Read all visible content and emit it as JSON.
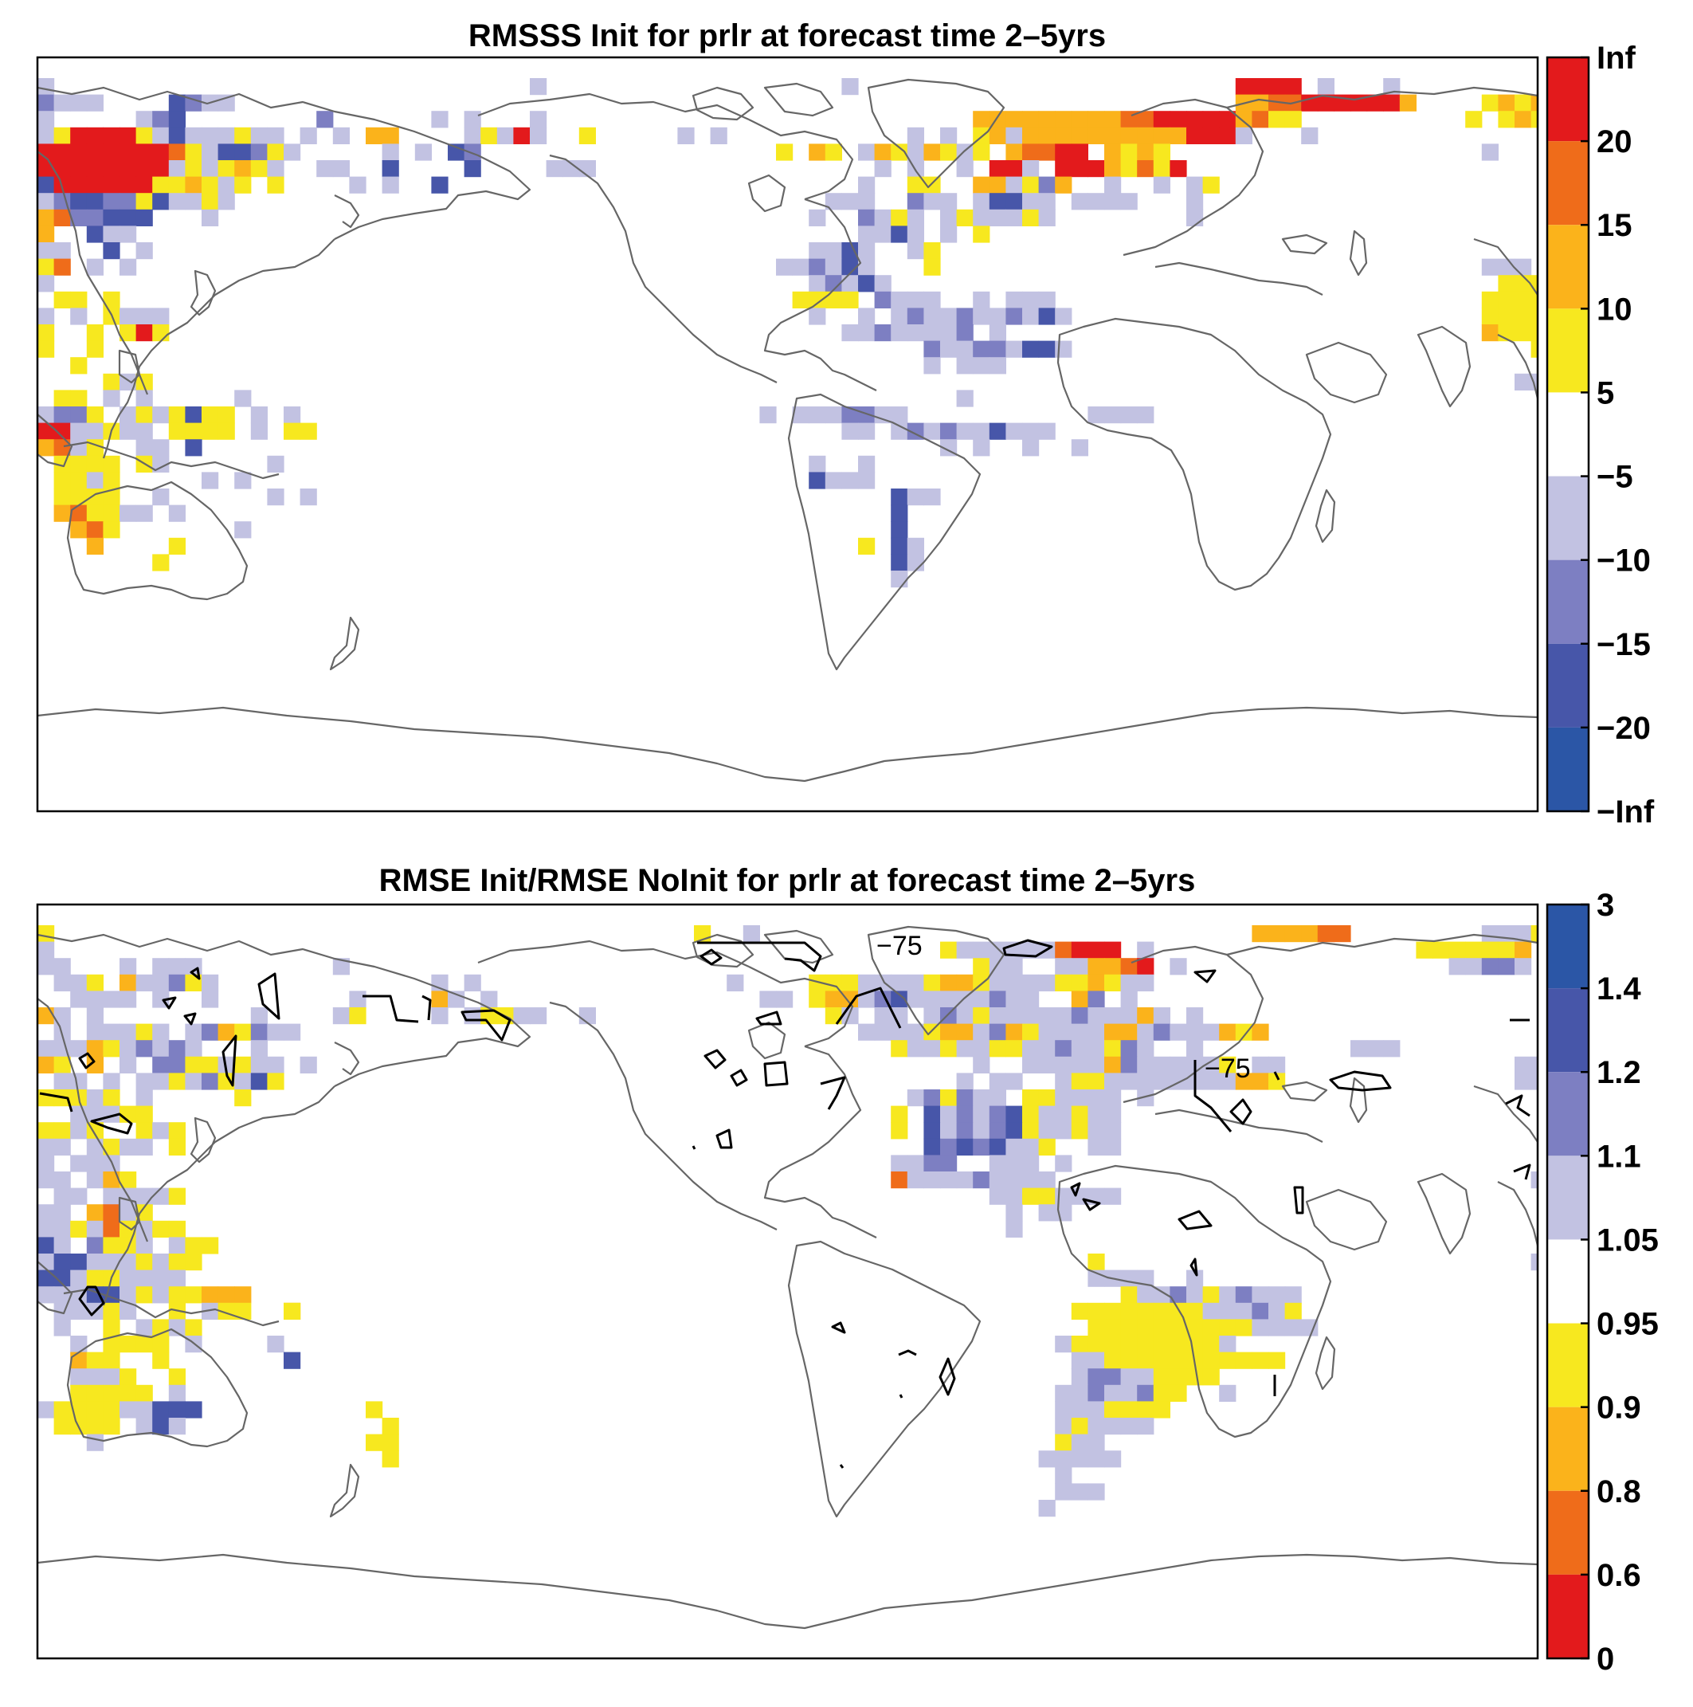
{
  "panels": [
    {
      "id": "rmsss",
      "title": "RMSSS Init for prlr at forecast time 2–5yrs",
      "colorbar": {
        "ticks": [
          "Inf",
          "20",
          "15",
          "10",
          "5",
          "−5",
          "−10",
          "−15",
          "−20",
          "−Inf"
        ],
        "colors_top_to_bottom": [
          "#e31a1c",
          "#ef6c1a",
          "#fbb31b",
          "#f7e81f",
          "#ffffff",
          "#c2c2e2",
          "#7d7fc2",
          "#4756a9",
          "#2b56a6"
        ]
      },
      "contour_labels": []
    },
    {
      "id": "rmse_ratio",
      "title": "RMSE Init/RMSE NoInit for prlr at forecast time 2–5yrs",
      "colorbar": {
        "ticks": [
          "3",
          "1.4",
          "1.2",
          "1.1",
          "1.05",
          "0.95",
          "0.9",
          "0.8",
          "0.6",
          "0"
        ],
        "colors_top_to_bottom": [
          "#2b56a6",
          "#4756a9",
          "#7d7fc2",
          "#c2c2e2",
          "#ffffff",
          "#f7e81f",
          "#fbb31b",
          "#ef6c1a",
          "#e31a1c"
        ]
      },
      "contour_labels": [
        "−75",
        "−75"
      ]
    }
  ]
}
